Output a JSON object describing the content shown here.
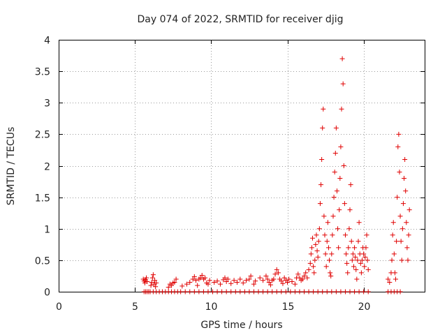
{
  "chart_data": {
    "type": "scatter",
    "title": "Day 074 of 2022, SRMTID for receiver djig",
    "xlabel": "GPS time / hours",
    "ylabel": "SRMTID / TECUs",
    "xlim": [
      0,
      24
    ],
    "ylim": [
      0,
      4
    ],
    "x_ticks": [
      "0",
      "5",
      "10",
      "15",
      "20"
    ],
    "y_ticks": [
      "0",
      "0.5",
      "1",
      "1.5",
      "2",
      "2.5",
      "3",
      "3.5",
      "4"
    ],
    "grid": true,
    "marker": "+",
    "color": "#e00000",
    "series": [
      {
        "name": "SRMTID",
        "points": [
          [
            5.6,
            0.0
          ],
          [
            5.7,
            0.0
          ],
          [
            5.8,
            0.0
          ],
          [
            5.9,
            0.0
          ],
          [
            6.0,
            0.0
          ],
          [
            6.2,
            0.0
          ],
          [
            6.4,
            0.0
          ],
          [
            6.6,
            0.0
          ],
          [
            6.8,
            0.0
          ],
          [
            7.0,
            0.0
          ],
          [
            7.2,
            0.0
          ],
          [
            7.4,
            0.0
          ],
          [
            7.6,
            0.0
          ],
          [
            7.8,
            0.0
          ],
          [
            8.0,
            0.0
          ],
          [
            8.3,
            0.0
          ],
          [
            8.6,
            0.0
          ],
          [
            8.9,
            0.0
          ],
          [
            9.2,
            0.0
          ],
          [
            9.5,
            0.0
          ],
          [
            9.8,
            0.0
          ],
          [
            10.1,
            0.0
          ],
          [
            10.4,
            0.0
          ],
          [
            10.7,
            0.0
          ],
          [
            11.0,
            0.0
          ],
          [
            11.3,
            0.0
          ],
          [
            11.6,
            0.0
          ],
          [
            11.9,
            0.0
          ],
          [
            12.2,
            0.0
          ],
          [
            12.5,
            0.0
          ],
          [
            12.8,
            0.0
          ],
          [
            13.1,
            0.0
          ],
          [
            13.4,
            0.0
          ],
          [
            13.7,
            0.0
          ],
          [
            14.0,
            0.0
          ],
          [
            14.3,
            0.0
          ],
          [
            14.6,
            0.0
          ],
          [
            14.9,
            0.0
          ],
          [
            15.2,
            0.0
          ],
          [
            15.5,
            0.0
          ],
          [
            15.8,
            0.0
          ],
          [
            16.1,
            0.0
          ],
          [
            16.4,
            0.0
          ],
          [
            16.7,
            0.0
          ],
          [
            17.0,
            0.0
          ],
          [
            17.3,
            0.0
          ],
          [
            17.6,
            0.0
          ],
          [
            17.9,
            0.0
          ],
          [
            18.2,
            0.0
          ],
          [
            18.5,
            0.0
          ],
          [
            18.8,
            0.0
          ],
          [
            19.1,
            0.0
          ],
          [
            19.4,
            0.0
          ],
          [
            19.7,
            0.0
          ],
          [
            20.0,
            0.0
          ],
          [
            20.3,
            0.0
          ],
          [
            21.6,
            0.0
          ],
          [
            21.8,
            0.0
          ],
          [
            22.0,
            0.0
          ],
          [
            22.2,
            0.0
          ],
          [
            22.4,
            0.0
          ],
          [
            5.55,
            0.2
          ],
          [
            5.6,
            0.17
          ],
          [
            5.65,
            0.14
          ],
          [
            5.7,
            0.19
          ],
          [
            5.75,
            0.22
          ],
          [
            5.8,
            0.16
          ],
          [
            6.05,
            0.1
          ],
          [
            6.1,
            0.15
          ],
          [
            6.15,
            0.22
          ],
          [
            6.2,
            0.27
          ],
          [
            6.25,
            0.12
          ],
          [
            6.3,
            0.18
          ],
          [
            6.35,
            0.08
          ],
          [
            6.4,
            0.14
          ],
          [
            7.2,
            0.07
          ],
          [
            7.3,
            0.12
          ],
          [
            7.4,
            0.1
          ],
          [
            7.5,
            0.14
          ],
          [
            7.6,
            0.15
          ],
          [
            7.7,
            0.2
          ],
          [
            8.1,
            0.09
          ],
          [
            8.4,
            0.12
          ],
          [
            8.6,
            0.15
          ],
          [
            8.8,
            0.2
          ],
          [
            8.9,
            0.24
          ],
          [
            9.0,
            0.18
          ],
          [
            9.1,
            0.1
          ],
          [
            9.2,
            0.2
          ],
          [
            9.3,
            0.22
          ],
          [
            9.4,
            0.26
          ],
          [
            9.5,
            0.2
          ],
          [
            9.6,
            0.22
          ],
          [
            9.7,
            0.14
          ],
          [
            9.8,
            0.12
          ],
          [
            9.9,
            0.18
          ],
          [
            10.2,
            0.15
          ],
          [
            10.4,
            0.17
          ],
          [
            10.6,
            0.12
          ],
          [
            10.8,
            0.19
          ],
          [
            10.9,
            0.22
          ],
          [
            11.0,
            0.16
          ],
          [
            11.1,
            0.2
          ],
          [
            11.3,
            0.13
          ],
          [
            11.5,
            0.18
          ],
          [
            11.7,
            0.15
          ],
          [
            11.9,
            0.2
          ],
          [
            12.1,
            0.14
          ],
          [
            12.3,
            0.18
          ],
          [
            12.5,
            0.2
          ],
          [
            12.6,
            0.25
          ],
          [
            12.8,
            0.12
          ],
          [
            12.9,
            0.17
          ],
          [
            13.2,
            0.22
          ],
          [
            13.4,
            0.18
          ],
          [
            13.6,
            0.25
          ],
          [
            13.7,
            0.2
          ],
          [
            13.8,
            0.15
          ],
          [
            13.9,
            0.11
          ],
          [
            14.0,
            0.18
          ],
          [
            14.1,
            0.2
          ],
          [
            14.2,
            0.28
          ],
          [
            14.3,
            0.35
          ],
          [
            14.4,
            0.3
          ],
          [
            14.5,
            0.2
          ],
          [
            14.6,
            0.17
          ],
          [
            14.7,
            0.13
          ],
          [
            14.8,
            0.22
          ],
          [
            14.9,
            0.18
          ],
          [
            15.0,
            0.15
          ],
          [
            15.1,
            0.2
          ],
          [
            15.3,
            0.16
          ],
          [
            15.5,
            0.12
          ],
          [
            15.6,
            0.22
          ],
          [
            15.7,
            0.28
          ],
          [
            15.8,
            0.22
          ],
          [
            15.9,
            0.18
          ],
          [
            16.0,
            0.2
          ],
          [
            16.1,
            0.25
          ],
          [
            16.2,
            0.3
          ],
          [
            16.3,
            0.22
          ],
          [
            16.4,
            0.35
          ],
          [
            16.5,
            0.45
          ],
          [
            16.55,
            0.6
          ],
          [
            16.6,
            0.7
          ],
          [
            16.65,
            0.85
          ],
          [
            16.7,
            0.4
          ],
          [
            16.75,
            0.3
          ],
          [
            16.8,
            0.5
          ],
          [
            16.85,
            0.75
          ],
          [
            16.9,
            0.9
          ],
          [
            16.95,
            0.65
          ],
          [
            17.0,
            0.55
          ],
          [
            17.05,
            0.8
          ],
          [
            17.1,
            1.0
          ],
          [
            17.15,
            1.4
          ],
          [
            17.2,
            1.7
          ],
          [
            17.25,
            2.1
          ],
          [
            17.3,
            2.6
          ],
          [
            17.35,
            2.9
          ],
          [
            17.4,
            1.2
          ],
          [
            17.45,
            0.9
          ],
          [
            17.5,
            0.6
          ],
          [
            17.55,
            0.4
          ],
          [
            17.6,
            0.8
          ],
          [
            17.65,
            1.1
          ],
          [
            17.7,
            0.7
          ],
          [
            17.75,
            0.5
          ],
          [
            17.8,
            0.3
          ],
          [
            17.85,
            0.25
          ],
          [
            17.9,
            0.6
          ],
          [
            17.95,
            0.9
          ],
          [
            18.0,
            1.2
          ],
          [
            18.05,
            1.5
          ],
          [
            18.1,
            1.9
          ],
          [
            18.15,
            2.2
          ],
          [
            18.2,
            2.6
          ],
          [
            18.25,
            1.6
          ],
          [
            18.3,
            1.0
          ],
          [
            18.35,
            0.7
          ],
          [
            18.4,
            1.3
          ],
          [
            18.45,
            1.8
          ],
          [
            18.5,
            2.3
          ],
          [
            18.55,
            2.9
          ],
          [
            18.6,
            3.7
          ],
          [
            18.65,
            3.3
          ],
          [
            18.7,
            2.0
          ],
          [
            18.75,
            1.4
          ],
          [
            18.8,
            0.9
          ],
          [
            18.85,
            0.6
          ],
          [
            18.9,
            0.45
          ],
          [
            18.95,
            0.3
          ],
          [
            19.0,
            0.7
          ],
          [
            19.05,
            1.0
          ],
          [
            19.1,
            1.3
          ],
          [
            19.15,
            1.7
          ],
          [
            19.2,
            0.8
          ],
          [
            19.25,
            0.5
          ],
          [
            19.3,
            0.6
          ],
          [
            19.35,
            0.4
          ],
          [
            19.4,
            0.7
          ],
          [
            19.45,
            0.55
          ],
          [
            19.5,
            0.35
          ],
          [
            19.55,
            0.2
          ],
          [
            19.6,
            0.5
          ],
          [
            19.65,
            0.8
          ],
          [
            19.7,
            1.1
          ],
          [
            19.75,
            0.6
          ],
          [
            19.8,
            0.45
          ],
          [
            19.85,
            0.3
          ],
          [
            19.9,
            0.5
          ],
          [
            19.95,
            0.7
          ],
          [
            20.0,
            0.6
          ],
          [
            20.05,
            0.4
          ],
          [
            20.1,
            0.55
          ],
          [
            20.15,
            0.7
          ],
          [
            20.2,
            0.9
          ],
          [
            20.25,
            0.5
          ],
          [
            20.3,
            0.35
          ],
          [
            21.6,
            0.2
          ],
          [
            21.7,
            0.15
          ],
          [
            21.8,
            0.3
          ],
          [
            21.85,
            0.5
          ],
          [
            21.9,
            0.9
          ],
          [
            21.95,
            1.1
          ],
          [
            22.0,
            0.6
          ],
          [
            22.05,
            0.3
          ],
          [
            22.1,
            0.2
          ],
          [
            22.15,
            0.8
          ],
          [
            22.2,
            1.5
          ],
          [
            22.25,
            2.3
          ],
          [
            22.3,
            2.5
          ],
          [
            22.35,
            1.9
          ],
          [
            22.4,
            1.2
          ],
          [
            22.45,
            0.8
          ],
          [
            22.5,
            0.5
          ],
          [
            22.55,
            1.0
          ],
          [
            22.6,
            1.4
          ],
          [
            22.65,
            1.8
          ],
          [
            22.7,
            2.1
          ],
          [
            22.75,
            1.6
          ],
          [
            22.8,
            1.1
          ],
          [
            22.85,
            0.7
          ],
          [
            22.9,
            0.5
          ],
          [
            22.95,
            0.9
          ],
          [
            23.0,
            1.3
          ]
        ]
      }
    ]
  }
}
